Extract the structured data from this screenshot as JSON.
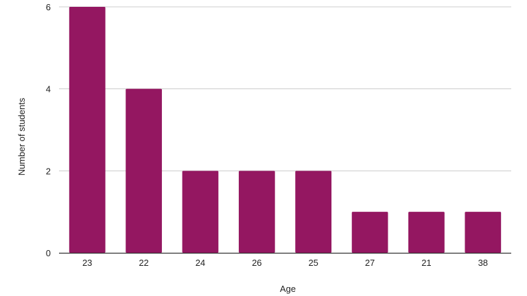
{
  "chart_data": {
    "type": "bar",
    "title": "",
    "xlabel": "Age",
    "ylabel": "Number of students",
    "categories": [
      "23",
      "22",
      "24",
      "26",
      "25",
      "27",
      "21",
      "38"
    ],
    "values": [
      6,
      4,
      2,
      2,
      2,
      1,
      1,
      1
    ],
    "ylim": [
      0,
      6
    ],
    "yticks": [
      "0",
      "2",
      "4",
      "6"
    ],
    "grid": true,
    "legend": "none",
    "bar_color": "#941761",
    "grid_color": "#cccccc",
    "axis_color": "#333333"
  }
}
